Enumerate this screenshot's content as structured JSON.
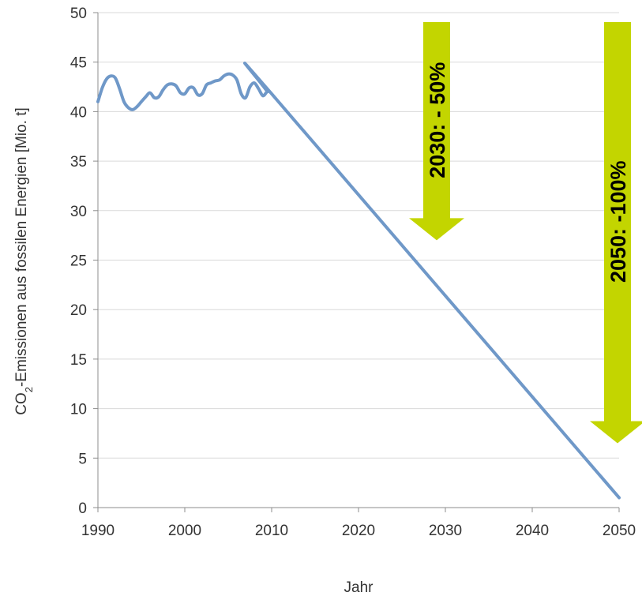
{
  "chart_data": {
    "type": "line",
    "xlabel": "Jahr",
    "ylabel_main": "CO",
    "ylabel_sub": "2",
    "ylabel_rest": "-Emissionen aus fossilen Energien [Mio. t]",
    "xlim": [
      1990,
      2050
    ],
    "ylim": [
      0,
      50
    ],
    "xticks": [
      "1990",
      "2000",
      "2010",
      "2020",
      "2030",
      "2040",
      "2050"
    ],
    "yticks": [
      "0",
      "5",
      "10",
      "15",
      "20",
      "25",
      "30",
      "35",
      "40",
      "45",
      "50"
    ],
    "grid": "horizontal",
    "series": [
      {
        "color": "#6f98c8",
        "x": [
          1990,
          1990.5,
          1991,
          1991.5,
          1992,
          1992.5,
          1993,
          1993.5,
          1994,
          1994.5,
          1995,
          1995.5,
          1996,
          1996.5,
          1997,
          1997.5,
          1998,
          1998.5,
          1999,
          1999.5,
          2000,
          2000.5,
          2001,
          2001.5,
          2002,
          2002.5,
          2003,
          2003.5,
          2004,
          2004.5,
          2005,
          2005.5,
          2006,
          2006.5,
          2007,
          2007.5,
          2008,
          2008.5,
          2009,
          2009.5,
          2010,
          2050
        ],
        "y": [
          41.0,
          42.4,
          43.3,
          43.6,
          43.4,
          42.3,
          41.0,
          40.4,
          40.2,
          40.5,
          41.0,
          41.5,
          41.9,
          41.4,
          41.5,
          42.2,
          42.7,
          42.8,
          42.6,
          41.9,
          41.8,
          42.4,
          42.4,
          41.7,
          41.8,
          42.7,
          42.9,
          43.1,
          43.2,
          43.6,
          43.8,
          43.7,
          43.2,
          41.8,
          41.4,
          42.5,
          42.9,
          42.3,
          41.6,
          42.0,
          41.8,
          1.0
        ]
      }
    ],
    "annotations": [
      {
        "text": "2030: - 50%",
        "x": 2029,
        "from": 50,
        "to": 27,
        "color": "#c3d500"
      },
      {
        "text": "2050: -100%",
        "x": 2050,
        "from": 50,
        "to": 6.5,
        "color": "#c3d500"
      }
    ]
  }
}
